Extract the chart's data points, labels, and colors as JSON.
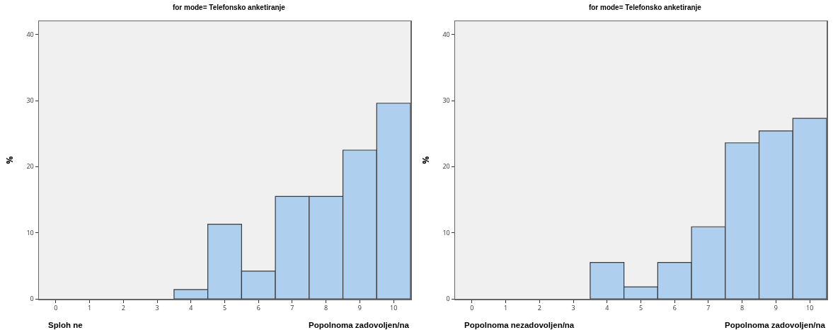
{
  "chart_data": [
    {
      "type": "histogram",
      "title": "for mode= Telefonsko anketiranje",
      "ylabel": "%",
      "bins": [
        -0.5,
        0.5,
        1.5,
        2.5,
        3.5,
        4.5,
        5.5,
        6.5,
        7.5,
        8.5,
        9.5,
        10.5
      ],
      "values": [
        0,
        0,
        0,
        0,
        1.4,
        11.3,
        4.2,
        15.5,
        15.5,
        22.5,
        29.6
      ],
      "color": "#aed0ee",
      "xlim": [
        -0.5,
        10.5
      ],
      "xticks": [
        0,
        1,
        2,
        3,
        4,
        5,
        6,
        7,
        8,
        9,
        10
      ],
      "ylim": [
        0,
        42
      ],
      "yticks": [
        0,
        10,
        20,
        30,
        40
      ],
      "grid": false,
      "annotations": [
        "Sploh ne",
        "Popolnoma zadovoljen/na"
      ]
    },
    {
      "type": "histogram",
      "title": "for mode= Telefonsko anketiranje",
      "ylabel": "%",
      "bins": [
        -0.5,
        0.5,
        1.5,
        2.5,
        3.5,
        4.5,
        5.5,
        6.5,
        7.5,
        8.5,
        9.5,
        10.5
      ],
      "values": [
        0,
        0,
        0,
        0,
        5.5,
        1.8,
        5.5,
        10.9,
        23.6,
        25.4,
        27.3
      ],
      "color": "#aed0ee",
      "xlim": [
        -0.5,
        10.5
      ],
      "xticks": [
        0,
        1,
        2,
        3,
        4,
        5,
        6,
        7,
        8,
        9,
        10
      ],
      "ylim": [
        0,
        42
      ],
      "yticks": [
        0,
        10,
        20,
        30,
        40
      ],
      "grid": false,
      "annotations": [
        "Popolnoma nezadovoljen/na",
        "Popolnoma zadovoljen/na"
      ]
    }
  ]
}
